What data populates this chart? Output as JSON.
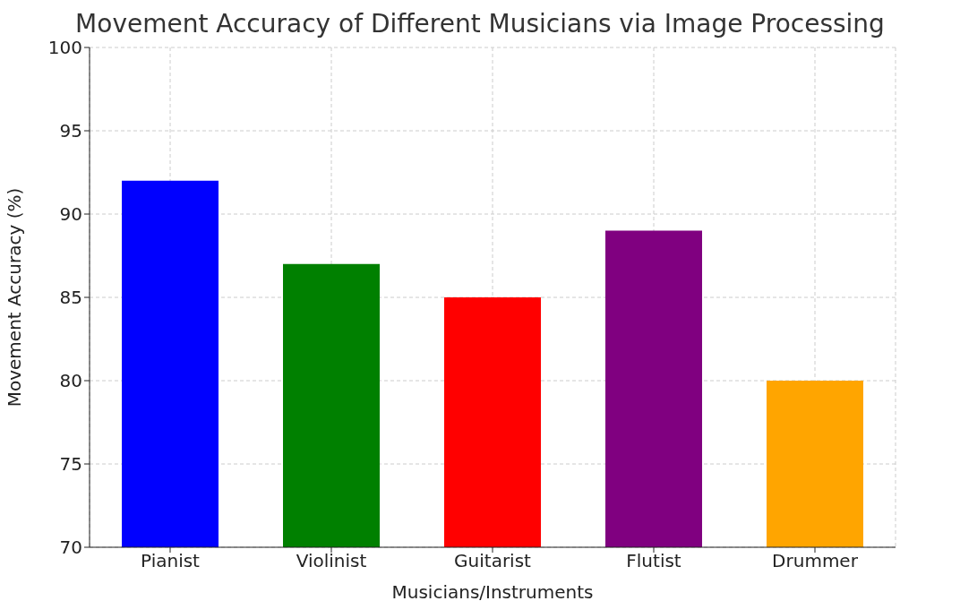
{
  "chart_data": {
    "type": "bar",
    "title": "Movement Accuracy of Different Musicians via Image Processing",
    "xlabel": "Musicians/Instruments",
    "ylabel": "Movement Accuracy (%)",
    "categories": [
      "Pianist",
      "Violinist",
      "Guitarist",
      "Flutist",
      "Drummer"
    ],
    "values": [
      92,
      87,
      85,
      89,
      80
    ],
    "colors": [
      "#0000ff",
      "#008000",
      "#ff0000",
      "#800080",
      "#ffa500"
    ],
    "ylim": [
      70,
      100
    ],
    "yticks": [
      70,
      75,
      80,
      85,
      90,
      95,
      100
    ],
    "grid": true
  }
}
